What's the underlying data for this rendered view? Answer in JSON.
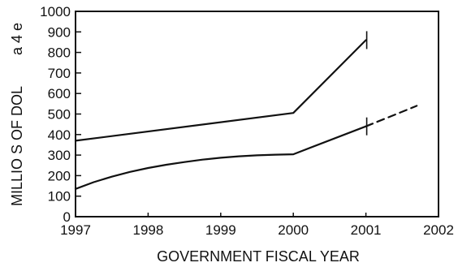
{
  "chart_data": {
    "type": "line",
    "title": "",
    "xlabel": "GOVERNMENT FISCAL YEAR",
    "ylabel": "MILLIO S OF DOL",
    "side_mark": "a 4 e",
    "xlim": [
      1997,
      2002
    ],
    "ylim": [
      0,
      1000
    ],
    "x_ticks": [
      "1997",
      "1998",
      "1999",
      "2000",
      "2001",
      "2002"
    ],
    "y_ticks": [
      "0",
      "100",
      "200",
      "300",
      "400",
      "500",
      "600",
      "700",
      "800",
      "900",
      "1000"
    ],
    "grid": false,
    "series": [
      {
        "style": "solid",
        "color": "#111111",
        "x": [
          1997,
          2000,
          2001
        ],
        "y": [
          370,
          505,
          860
        ]
      },
      {
        "style": "solid",
        "color": "#111111",
        "x": [
          1997,
          1997.25,
          1997.5,
          1997.75,
          1998,
          1998.25,
          1998.5,
          1998.75,
          1999,
          1999.25,
          1999.5,
          1999.75,
          2000,
          2001
        ],
        "y": [
          135,
          168,
          195,
          218,
          237,
          253,
          266,
          278,
          287,
          294,
          299,
          302,
          304,
          440
        ]
      },
      {
        "style": "dashed",
        "color": "#111111",
        "x": [
          2001,
          2001.7
        ],
        "y": [
          440,
          540
        ]
      }
    ],
    "end_marks": [
      {
        "x": 2001,
        "y": 860
      },
      {
        "x": 2001,
        "y": 440
      }
    ]
  }
}
